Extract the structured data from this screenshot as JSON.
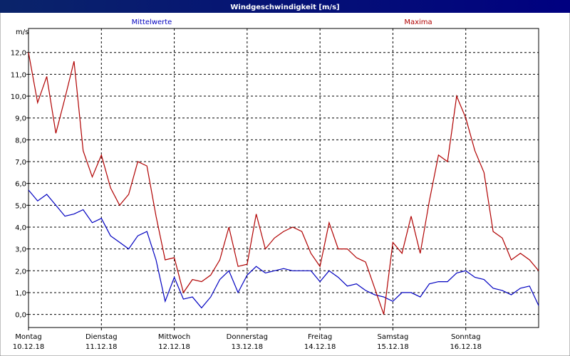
{
  "window_title": "Windgeschwindigkeit [m/s]",
  "chart_data": {
    "type": "line",
    "unit_label": "m/s",
    "x": [
      0,
      3,
      6,
      9,
      12,
      15,
      18,
      21,
      24,
      27,
      30,
      33,
      36,
      39,
      42,
      45,
      48,
      51,
      54,
      57,
      60,
      63,
      66,
      69,
      72,
      75,
      78,
      81,
      84,
      87,
      90,
      93,
      96,
      99,
      102,
      105,
      108,
      111,
      114,
      117,
      120,
      123,
      126,
      129,
      132,
      135,
      138,
      141,
      144,
      147,
      150,
      153,
      156,
      159,
      162,
      165,
      168
    ],
    "series": [
      {
        "name": "Mittelwerte",
        "color": "#0000c0",
        "values": [
          5.7,
          5.2,
          5.5,
          5.0,
          4.5,
          4.6,
          4.8,
          4.2,
          4.4,
          3.6,
          3.3,
          3.0,
          3.6,
          3.8,
          2.5,
          0.6,
          1.7,
          0.7,
          0.8,
          0.3,
          0.8,
          1.6,
          2.0,
          1.0,
          1.8,
          2.2,
          1.9,
          2.0,
          2.1,
          2.0,
          2.0,
          2.0,
          1.5,
          2.0,
          1.7,
          1.3,
          1.4,
          1.1,
          0.9,
          0.8,
          0.6,
          1.0,
          1.0,
          0.8,
          1.4,
          1.5,
          1.5,
          1.9,
          2.0,
          1.7,
          1.6,
          1.2,
          1.1,
          0.9,
          1.2,
          1.3,
          0.4
        ]
      },
      {
        "name": "Maxima",
        "color": "#b00000",
        "values": [
          12.0,
          9.7,
          10.9,
          8.3,
          9.9,
          11.6,
          7.5,
          6.3,
          7.3,
          5.8,
          5.0,
          5.5,
          7.0,
          6.8,
          4.5,
          2.5,
          2.6,
          1.0,
          1.6,
          1.5,
          1.8,
          2.5,
          4.0,
          2.2,
          2.3,
          4.6,
          3.0,
          3.5,
          3.8,
          4.0,
          3.8,
          2.8,
          2.2,
          4.2,
          3.0,
          3.0,
          2.6,
          2.4,
          1.2,
          0.0,
          3.3,
          2.8,
          4.5,
          2.8,
          5.2,
          7.3,
          7.0,
          10.0,
          9.0,
          7.5,
          6.5,
          3.8,
          3.5,
          2.5,
          2.8,
          2.5,
          2.0
        ]
      }
    ],
    "xlim": [
      0,
      168
    ],
    "xticks": [
      {
        "value": 0,
        "label": "Montag\n10.12.18"
      },
      {
        "value": 24,
        "label": "Dienstag\n11.12.18"
      },
      {
        "value": 48,
        "label": "Mittwoch\n12.12.18"
      },
      {
        "value": 72,
        "label": "Donnerstag\n13.12.18"
      },
      {
        "value": 96,
        "label": "Freitag\n14.12.18"
      },
      {
        "value": 120,
        "label": "Samstag\n15.12.18"
      },
      {
        "value": 144,
        "label": "Sonntag\n16.12.18"
      }
    ],
    "ylim": [
      -0.6,
      13.1
    ],
    "yticks": [
      {
        "value": 0,
        "label": "0,0"
      },
      {
        "value": 1,
        "label": "1,0"
      },
      {
        "value": 2,
        "label": "2,0"
      },
      {
        "value": 3,
        "label": "3,0"
      },
      {
        "value": 4,
        "label": "4,0"
      },
      {
        "value": 5,
        "label": "5,0"
      },
      {
        "value": 6,
        "label": "6,0"
      },
      {
        "value": 7,
        "label": "7,0"
      },
      {
        "value": 8,
        "label": "8,0"
      },
      {
        "value": 9,
        "label": "9,0"
      },
      {
        "value": 10,
        "label": "10,0"
      },
      {
        "value": 11,
        "label": "11,0"
      },
      {
        "value": 12,
        "label": "12,0"
      }
    ],
    "grid": true
  }
}
